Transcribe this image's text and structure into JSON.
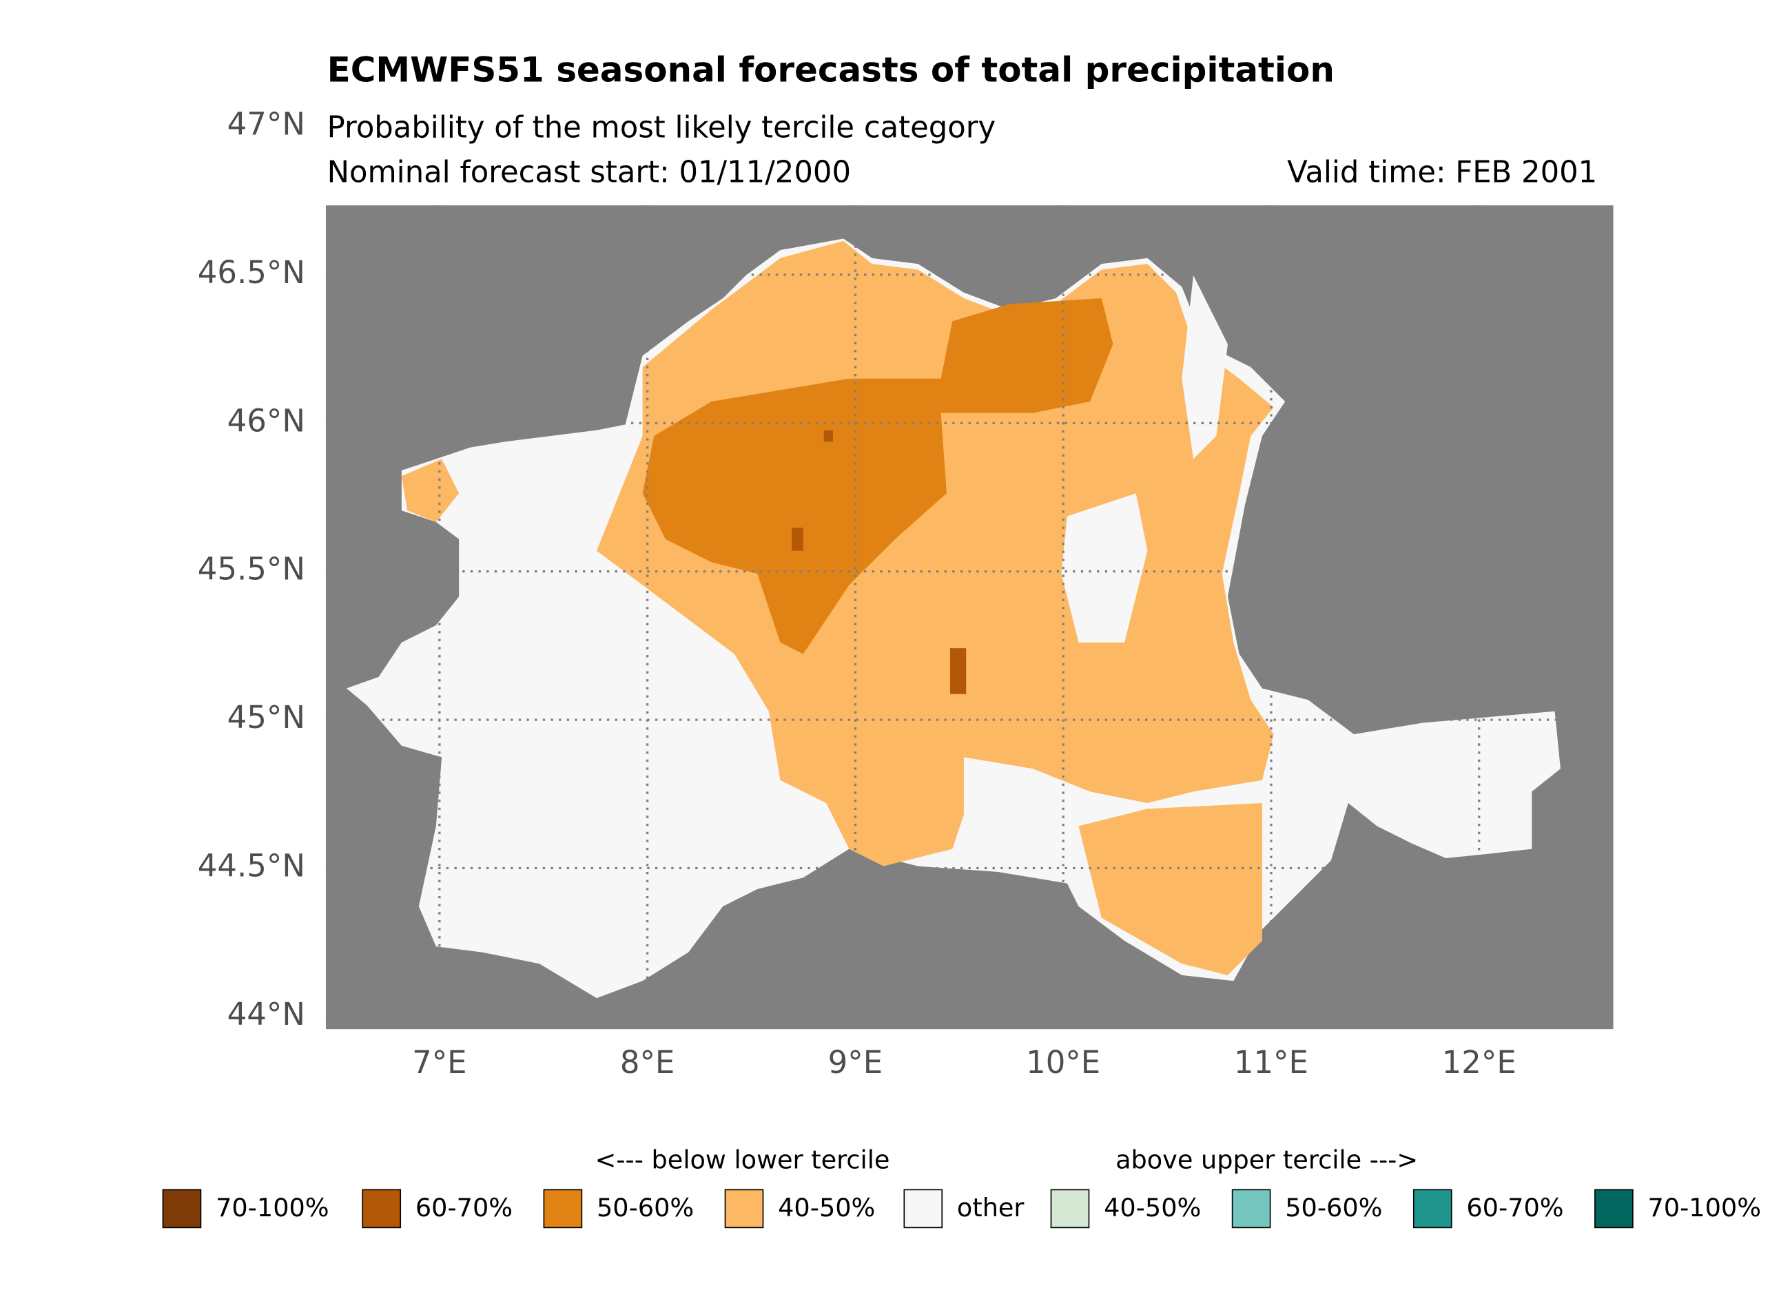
{
  "header": {
    "title": "ECMWFS51 seasonal forecasts of total precipitation",
    "subtitle": "Probability of the most likely tercile category",
    "forecast_start": "Nominal forecast start: 01/11/2000",
    "valid_time": "Valid time: FEB 2001"
  },
  "axes": {
    "lat_labels": [
      "44°N",
      "44.5°N",
      "45°N",
      "45.5°N",
      "46°N",
      "46.5°N",
      "47°N"
    ],
    "lon_labels": [
      "7°E",
      "8°E",
      "9°E",
      "10°E",
      "11°E",
      "12°E"
    ]
  },
  "legend": {
    "below_label": "<--- below lower tercile",
    "above_label": "above upper tercile --->",
    "entries": [
      {
        "label": "70-100%",
        "color": "#7f3b08"
      },
      {
        "label": "60-70%",
        "color": "#b35806"
      },
      {
        "label": "50-60%",
        "color": "#e08214"
      },
      {
        "label": "40-50%",
        "color": "#fdb863"
      },
      {
        "label": "other",
        "color": "#f7f7f7"
      },
      {
        "label": "40-50%",
        "color": "#d4e8d4"
      },
      {
        "label": "50-60%",
        "color": "#74c6bf"
      },
      {
        "label": "60-70%",
        "color": "#1f958b"
      },
      {
        "label": "70-100%",
        "color": "#01665e"
      }
    ]
  }
}
